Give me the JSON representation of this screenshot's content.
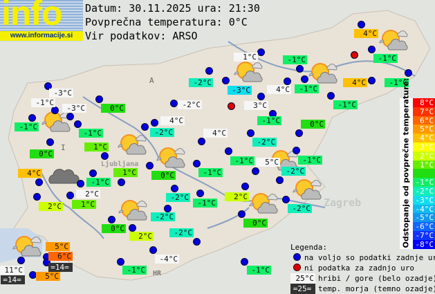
{
  "logo": {
    "word": "info",
    "url": "www.informacije.si"
  },
  "header": {
    "date_line": "Datum: 30.11.2025 ura: 21:30",
    "avg_line": "Povprečna temperatura: 0°C",
    "source_line": "Vir podatkov: ARSO"
  },
  "map_labels": {
    "austria": "A",
    "italy": "I",
    "croatia": "HR",
    "ljubljana": "Ljubljana",
    "zagreb": "Zagreb"
  },
  "stations": [
    {
      "temp": "-3°C",
      "kind": "mountain"
    },
    {
      "temp": "-1°C",
      "kind": "mountain"
    },
    {
      "temp": "-3°C",
      "kind": "mountain"
    },
    {
      "temp": "-1°C",
      "kind": "valley"
    },
    {
      "temp": "-1°C",
      "kind": "valley"
    },
    {
      "temp": "0°C",
      "kind": "valley"
    },
    {
      "temp": "0°C",
      "kind": "valley"
    },
    {
      "temp": "1°C",
      "kind": "valley"
    },
    {
      "temp": "4°C",
      "kind": "valley"
    },
    {
      "temp": "-1°C",
      "kind": "valley"
    },
    {
      "temp": "2°C",
      "kind": "mountain"
    },
    {
      "temp": "2°C",
      "kind": "valley"
    },
    {
      "temp": "1°C",
      "kind": "valley"
    },
    {
      "temp": "1°C",
      "kind": "valley"
    },
    {
      "temp": "0°C",
      "kind": "valley"
    },
    {
      "temp": "-2°C",
      "kind": "valley"
    },
    {
      "temp": "-2°C",
      "kind": "mountain"
    },
    {
      "temp": "4°C",
      "kind": "mountain"
    },
    {
      "temp": "-2°C",
      "kind": "valley"
    },
    {
      "temp": "4°C",
      "kind": "mountain"
    },
    {
      "temp": "-1°C",
      "kind": "valley"
    },
    {
      "temp": "-2°C",
      "kind": "valley"
    },
    {
      "temp": "-1°C",
      "kind": "valley"
    },
    {
      "temp": "-2°C",
      "kind": "valley"
    },
    {
      "temp": "0°C",
      "kind": "valley"
    },
    {
      "temp": "2°C",
      "kind": "valley"
    },
    {
      "temp": "-2°C",
      "kind": "valley"
    },
    {
      "temp": "-4°C",
      "kind": "mountain"
    },
    {
      "temp": "-1°C",
      "kind": "valley"
    },
    {
      "temp": "1°C",
      "kind": "mountain"
    },
    {
      "temp": "-3°C",
      "kind": "valley"
    },
    {
      "temp": "4°C",
      "kind": "mountain"
    },
    {
      "temp": "3°C",
      "kind": "mountain"
    },
    {
      "temp": "-1°C",
      "kind": "valley"
    },
    {
      "temp": "-1°C",
      "kind": "valley"
    },
    {
      "temp": "-1°C",
      "kind": "valley"
    },
    {
      "temp": "-1°C",
      "kind": "valley"
    },
    {
      "temp": "0°C",
      "kind": "valley"
    },
    {
      "temp": "4°C",
      "kind": "valley"
    },
    {
      "temp": "-1°C",
      "kind": "valley"
    },
    {
      "temp": "4°C",
      "kind": "valley"
    },
    {
      "temp": "-1°C",
      "kind": "valley"
    },
    {
      "temp": "-2°C",
      "kind": "valley"
    },
    {
      "temp": "-1°C",
      "kind": "valley"
    },
    {
      "temp": "5°C",
      "kind": "mountain"
    },
    {
      "temp": "-1°C",
      "kind": "valley"
    },
    {
      "temp": "-2°C",
      "kind": "valley"
    },
    {
      "temp": "2°C",
      "kind": "valley"
    },
    {
      "temp": "-2°C",
      "kind": "valley"
    },
    {
      "temp": "0°C",
      "kind": "valley"
    },
    {
      "temp": "-1°C",
      "kind": "valley"
    },
    {
      "temp": "5°C",
      "kind": "valley"
    },
    {
      "temp": "6°C",
      "kind": "valley"
    },
    {
      "temp": "=14=",
      "kind": "sea"
    },
    {
      "temp": "11°C",
      "kind": "mountain"
    },
    {
      "temp": "=14=",
      "kind": "sea"
    },
    {
      "temp": "5°C",
      "kind": "valley"
    }
  ],
  "weather_icons": [
    "partly-cloudy",
    "partly-cloudy",
    "partly-cloudy",
    "partly-cloudy",
    "partly-cloudy",
    "partly-cloudy",
    "partly-cloudy",
    "partly-cloudy",
    "partly-cloudy",
    "partly-cloudy",
    "partly-cloudy",
    "overcast"
  ],
  "legend": {
    "title": "Legenda:",
    "available": "na voljo so podatki zadnje ure",
    "missing": "ni podatka za zadnjo uro",
    "mountain_sample": "25°C",
    "mountain_text": "hribi / gore (belo ozadje)",
    "sea_sample": "=25=",
    "sea_text": "temp. morja (temno ozadje)",
    "available_color": "#0000dd",
    "missing_color": "#dd0000"
  },
  "scale": {
    "title": "Odstopanje od povprečne temperature:",
    "steps": [
      {
        "label": "8°C",
        "value": 8,
        "color": "#ff0000"
      },
      {
        "label": "7°C",
        "value": 7,
        "color": "#ff3300"
      },
      {
        "label": "6°C",
        "value": 6,
        "color": "#ff6600"
      },
      {
        "label": "5°C",
        "value": 5,
        "color": "#ff9900"
      },
      {
        "label": "4°C",
        "value": 4,
        "color": "#ffc000"
      },
      {
        "label": "3°C",
        "value": 3,
        "color": "#ffff00"
      },
      {
        "label": "2°C",
        "value": 2,
        "color": "#ccff00"
      },
      {
        "label": "1°C",
        "value": 1,
        "color": "#66ee00"
      },
      {
        "label": "",
        "value": 0,
        "color": "#22dd11"
      },
      {
        "label": "-1°C",
        "value": -1,
        "color": "#11ee66"
      },
      {
        "label": "-2°C",
        "value": -2,
        "color": "#11eebb"
      },
      {
        "label": "-3°C",
        "value": -3,
        "color": "#11ddee"
      },
      {
        "label": "-4°C",
        "value": -4,
        "color": "#11bbee"
      },
      {
        "label": "-5°C",
        "value": -5,
        "color": "#1199ee"
      },
      {
        "label": "-6°C",
        "value": -6,
        "color": "#1166ff"
      },
      {
        "label": "-7°C",
        "value": -7,
        "color": "#1133ff"
      },
      {
        "label": "-8°C",
        "value": -8,
        "color": "#0000ff"
      }
    ]
  }
}
